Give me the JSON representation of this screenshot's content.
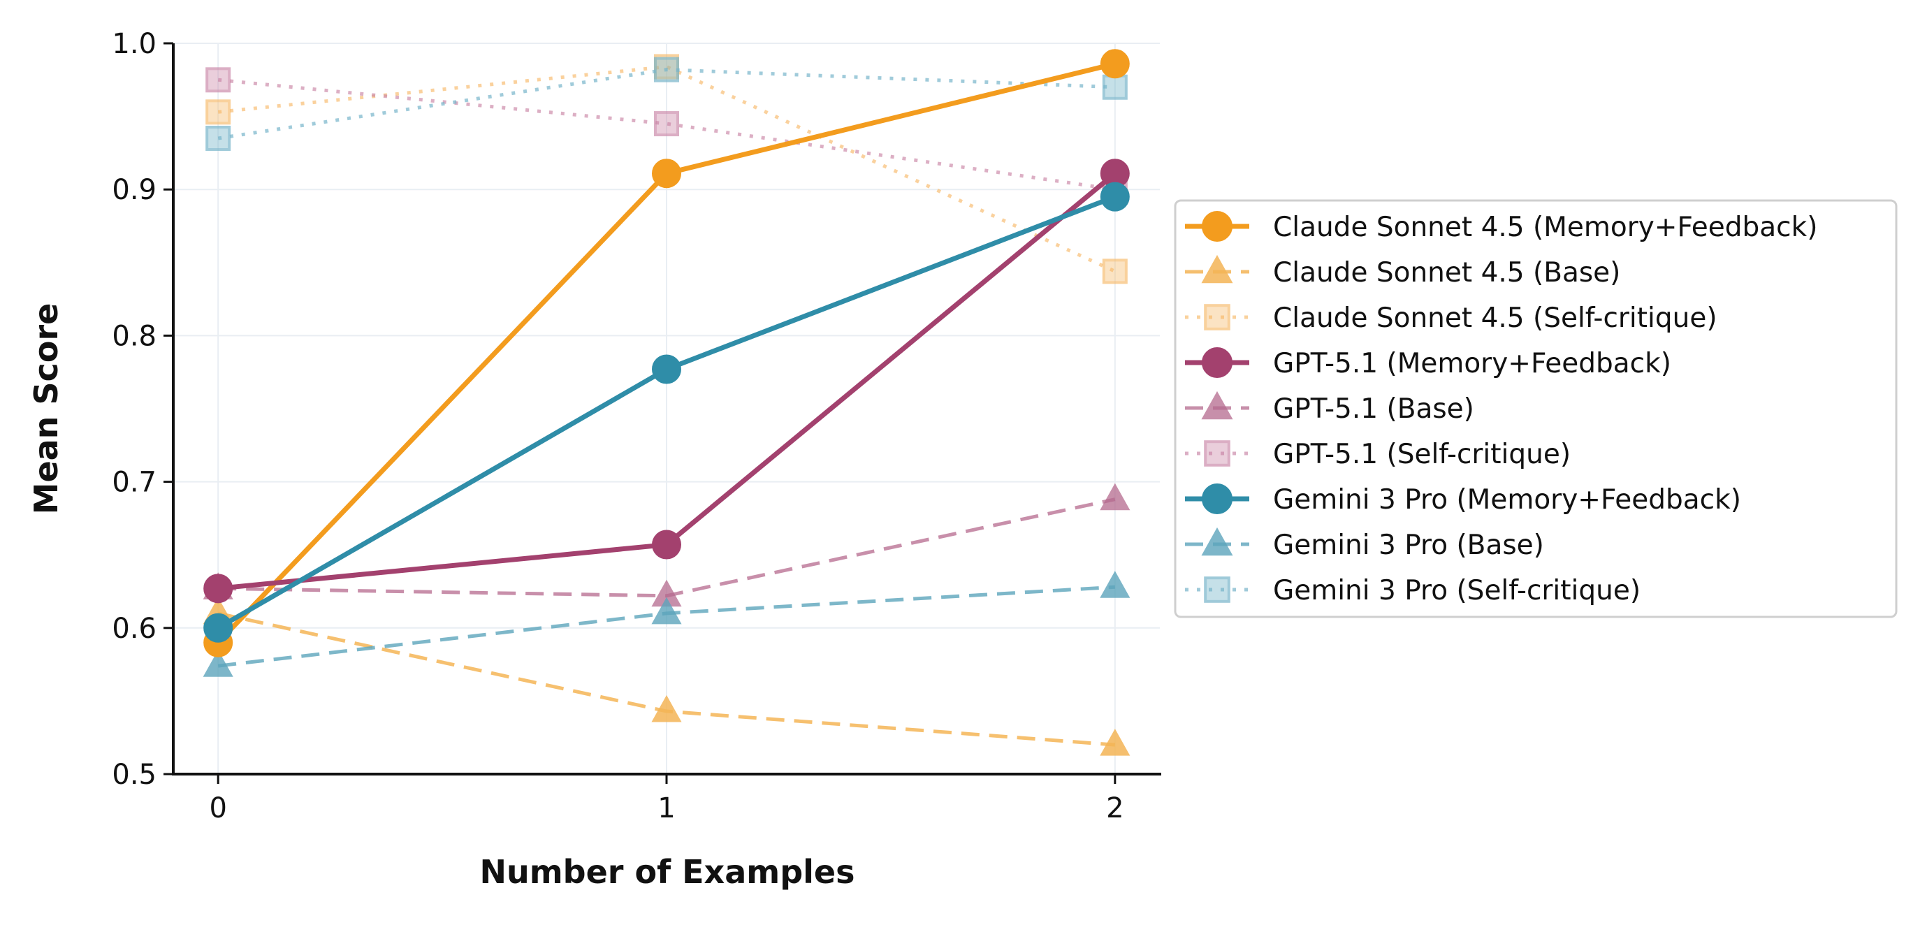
{
  "chart_data": {
    "type": "line",
    "title": "",
    "xlabel": "Number of Examples",
    "ylabel": "Mean Score",
    "x": [
      0,
      1,
      2
    ],
    "x_tick_labels": [
      "0",
      "1",
      "2"
    ],
    "xlim": [
      -0.1,
      2.1
    ],
    "ylim": [
      0.5,
      1.0
    ],
    "y_ticks": [
      0.5,
      0.6,
      0.7,
      0.8,
      0.9,
      1.0
    ],
    "y_tick_labels": [
      "0.5",
      "0.6",
      "0.7",
      "0.8",
      "0.9",
      "1.0"
    ],
    "grid": true,
    "legend_position": "center-right (outside plot)",
    "series": [
      {
        "name": "Claude Sonnet 4.5 (Memory+Feedback)",
        "values": [
          0.59,
          0.911,
          0.986
        ],
        "color": "#F39C1E",
        "style": "solid",
        "marker": "circle",
        "opacity": 1.0
      },
      {
        "name": "Claude Sonnet 4.5 (Base)",
        "values": [
          0.61,
          0.543,
          0.52
        ],
        "color": "#F4B556",
        "style": "dashed",
        "marker": "triangle",
        "opacity": 0.85
      },
      {
        "name": "Claude Sonnet 4.5 (Self-critique)",
        "values": [
          0.953,
          0.984,
          0.844
        ],
        "color": "#F7B968",
        "style": "dotted",
        "marker": "square",
        "opacity": 0.65
      },
      {
        "name": "GPT-5.1 (Memory+Feedback)",
        "values": [
          0.627,
          0.657,
          0.911
        ],
        "color": "#A3416E",
        "style": "solid",
        "marker": "circle",
        "opacity": 1.0
      },
      {
        "name": "GPT-5.1 (Base)",
        "values": [
          0.627,
          0.622,
          0.688
        ],
        "color": "#B56A8E",
        "style": "dashed",
        "marker": "triangle",
        "opacity": 0.75
      },
      {
        "name": "GPT-5.1 (Self-critique)",
        "values": [
          0.975,
          0.945,
          0.9
        ],
        "color": "#C984A5",
        "style": "dotted",
        "marker": "square",
        "opacity": 0.65
      },
      {
        "name": "Gemini 3 Pro (Memory+Feedback)",
        "values": [
          0.6,
          0.777,
          0.895
        ],
        "color": "#2F8DA8",
        "style": "solid",
        "marker": "circle",
        "opacity": 1.0
      },
      {
        "name": "Gemini 3 Pro (Base)",
        "values": [
          0.574,
          0.61,
          0.628
        ],
        "color": "#5DA5BC",
        "style": "dashed",
        "marker": "triangle",
        "opacity": 0.8
      },
      {
        "name": "Gemini 3 Pro (Self-critique)",
        "values": [
          0.935,
          0.982,
          0.97
        ],
        "color": "#77B5CA",
        "style": "dotted",
        "marker": "square",
        "opacity": 0.7
      }
    ]
  }
}
